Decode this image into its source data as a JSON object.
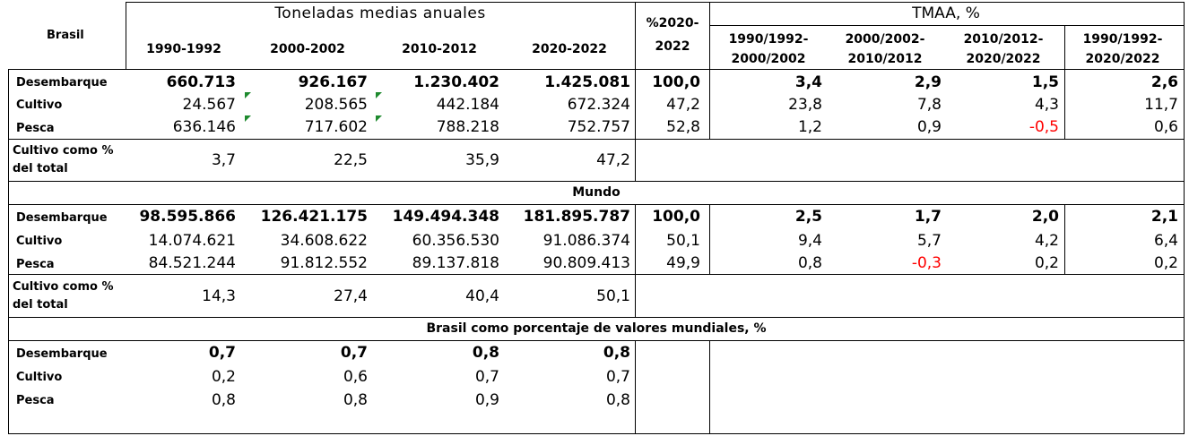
{
  "header": {
    "corner": "Brasil",
    "group_tons": "Toneladas medias anuales",
    "periods": [
      "1990-1992",
      "2000-2002",
      "2010-2012",
      "2020-2022"
    ],
    "share_l1": "%2020-",
    "share_l2": "2022",
    "group_tmaa": "TMAA, %",
    "tmaa_cols": [
      {
        "l1": "1990/1992-",
        "l2": "2000/2002"
      },
      {
        "l1": "2000/2002-",
        "l2": "2010/2012"
      },
      {
        "l1": "2010/2012-",
        "l2": "2020/2022"
      },
      {
        "l1": "1990/1992-",
        "l2": "2020/2022"
      }
    ]
  },
  "brasil": {
    "rows": [
      {
        "label": "Desembarque",
        "v": [
          "660.713",
          "926.167",
          "1.230.402",
          "1.425.081"
        ],
        "share": "100,0",
        "tmaa": [
          "3,4",
          "2,9",
          "1,5",
          "2,6"
        ]
      },
      {
        "label": "Cultivo",
        "v": [
          "24.567",
          "208.565",
          "442.184",
          "672.324"
        ],
        "share": "47,2",
        "tmaa": [
          "23,8",
          "7,8",
          "4,3",
          "11,7"
        ]
      },
      {
        "label": "Pesca",
        "v": [
          "636.146",
          "717.602",
          "788.218",
          "752.757"
        ],
        "share": "52,8",
        "tmaa": [
          "1,2",
          "0,9",
          "-0,5",
          "0,6"
        ]
      }
    ],
    "pct_label_1": "Cultivo como %",
    "pct_label_2": "del total",
    "pct": [
      "3,7",
      "22,5",
      "35,9",
      "47,2"
    ]
  },
  "mundo": {
    "title": "Mundo",
    "rows": [
      {
        "label": "Desembarque",
        "v": [
          "98.595.866",
          "126.421.175",
          "149.494.348",
          "181.895.787"
        ],
        "share": "100,0",
        "tmaa": [
          "2,5",
          "1,7",
          "2,0",
          "2,1"
        ]
      },
      {
        "label": "Cultivo",
        "v": [
          "14.074.621",
          "34.608.622",
          "60.356.530",
          "91.086.374"
        ],
        "share": "50,1",
        "tmaa": [
          "9,4",
          "5,7",
          "4,2",
          "6,4"
        ]
      },
      {
        "label": "Pesca",
        "v": [
          "84.521.244",
          "91.812.552",
          "89.137.818",
          "90.809.413"
        ],
        "share": "49,9",
        "tmaa": [
          "0,8",
          "-0,3",
          "0,2",
          "0,2"
        ]
      }
    ],
    "pct_label_1": "Cultivo como %",
    "pct_label_2": "del total",
    "pct": [
      "14,3",
      "27,4",
      "40,4",
      "50,1"
    ]
  },
  "pct_world": {
    "title": "Brasil como porcentaje de valores mundiales, %",
    "rows": [
      {
        "label": "Desembarque",
        "v": [
          "0,7",
          "0,7",
          "0,8",
          "0,8"
        ]
      },
      {
        "label": "Cultivo",
        "v": [
          "0,2",
          "0,6",
          "0,7",
          "0,7"
        ]
      },
      {
        "label": "Pesca",
        "v": [
          "0,8",
          "0,8",
          "0,9",
          "0,8"
        ]
      }
    ]
  },
  "colors": {
    "negative": "#ff0000",
    "flag": "#1e8a2e"
  }
}
